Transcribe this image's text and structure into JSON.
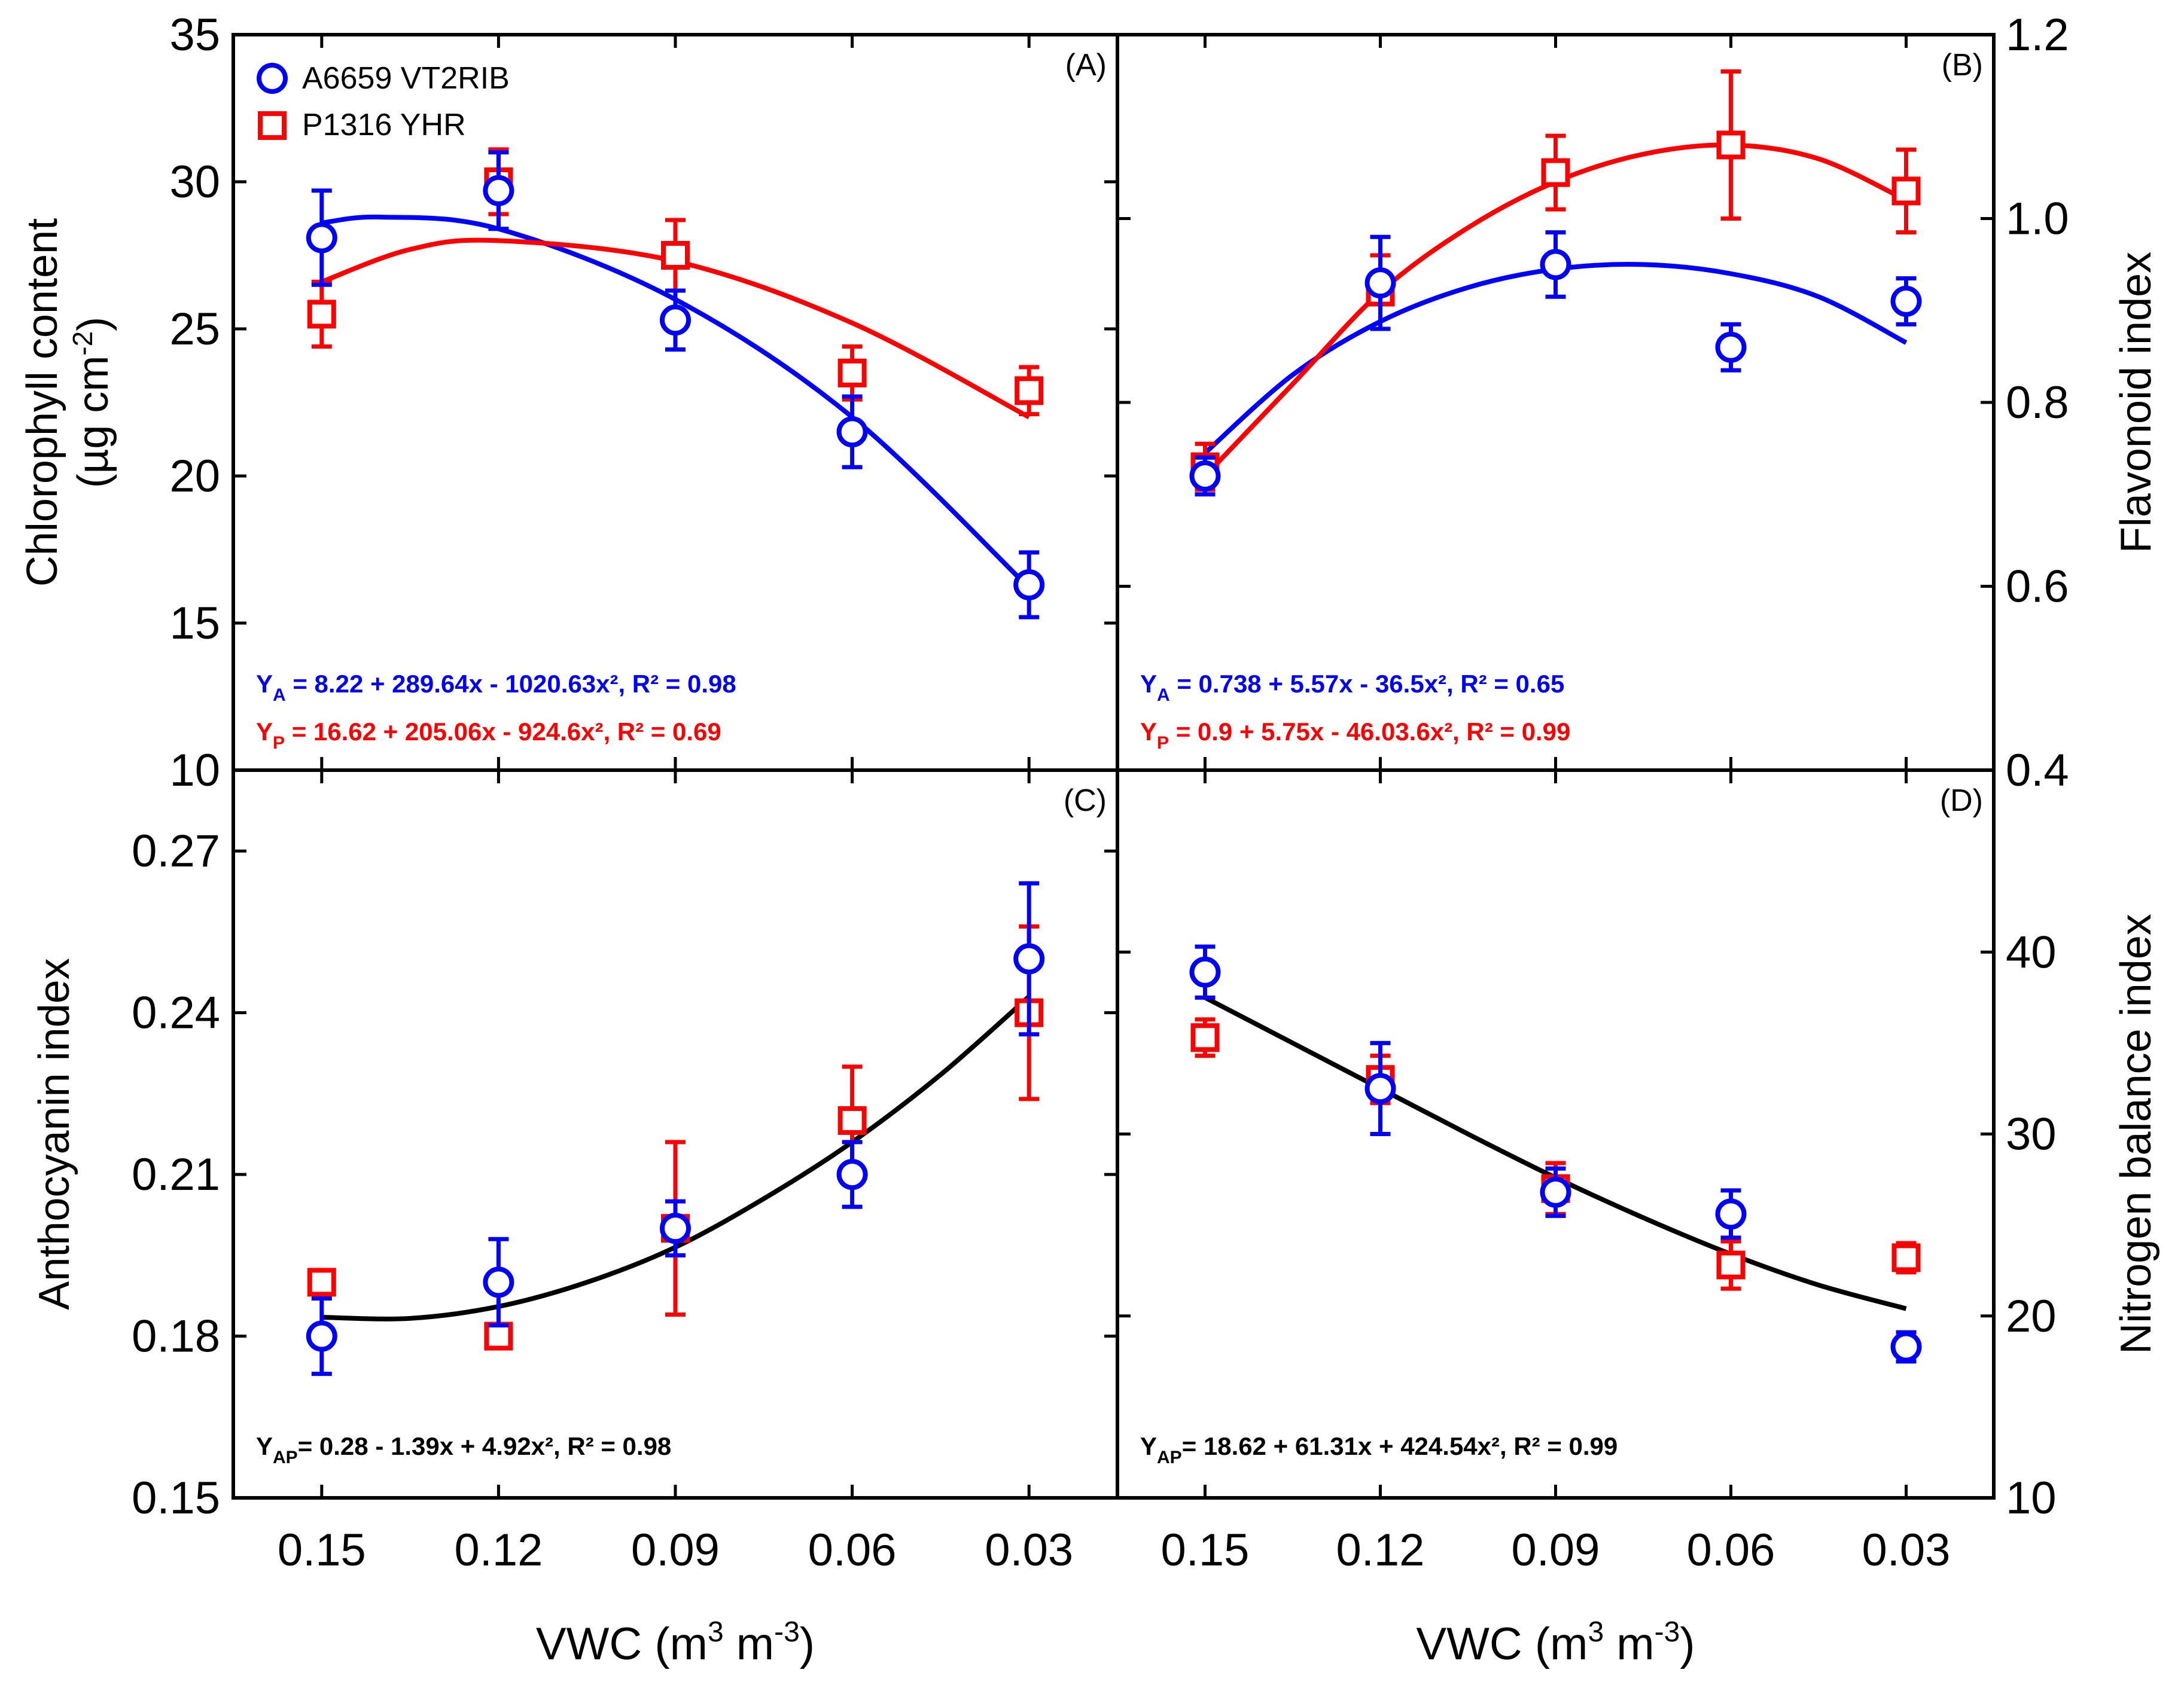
{
  "colors": {
    "series_a": "#0000ff",
    "series_p": "#ff0000",
    "fit_common": "#000000",
    "axis": "#000000"
  },
  "legend": {
    "series_a": "A6659 VT2RIB",
    "series_p": "P1316 YHR"
  },
  "x_axis": {
    "label": "VWC (m",
    "label_mid": " m",
    "label_sup": "3",
    "tick_labels": [
      "0.15",
      "0.12",
      "0.09",
      "0.06",
      "0.03"
    ]
  },
  "chart_data": [
    {
      "id": "A",
      "type": "scatter",
      "panel_label": "(A)",
      "ylabel_line1": "Chlorophyll content",
      "ylabel_line2": "(µg cm",
      "ylabel_sup": "-2",
      "ylabel_close": ")",
      "y_axis_side": "left",
      "ylim": [
        10,
        35
      ],
      "yticks": [
        10,
        15,
        20,
        25,
        30,
        35
      ],
      "ytick_labels": [
        "10",
        "15",
        "20",
        "25",
        "30",
        "35"
      ],
      "x": [
        0.15,
        0.12,
        0.09,
        0.06,
        0.03
      ],
      "series": [
        {
          "name": "A6659 VT2RIB",
          "color_key": "series_a",
          "marker": "circle",
          "values": [
            28.1,
            29.7,
            25.3,
            21.5,
            16.3
          ],
          "errors": [
            1.6,
            1.3,
            1.0,
            1.2,
            1.1
          ]
        },
        {
          "name": "P1316 YHR",
          "color_key": "series_p",
          "marker": "square",
          "values": [
            25.5,
            30.0,
            27.5,
            23.5,
            22.9
          ],
          "errors": [
            1.1,
            1.1,
            1.2,
            0.9,
            0.8
          ]
        }
      ],
      "fits": [
        {
          "color_key": "series_a",
          "points": [
            [
              0.15,
              28.6
            ],
            [
              0.14,
              28.8
            ],
            [
              0.12,
              28.4
            ],
            [
              0.09,
              26.0
            ],
            [
              0.06,
              22.0
            ],
            [
              0.03,
              16.2
            ]
          ]
        },
        {
          "color_key": "series_p",
          "points": [
            [
              0.15,
              26.6
            ],
            [
              0.135,
              27.7
            ],
            [
              0.12,
              28.0
            ],
            [
              0.09,
              27.3
            ],
            [
              0.06,
              25.2
            ],
            [
              0.03,
              22.0
            ]
          ]
        }
      ],
      "equations": [
        {
          "color_key": "series_a",
          "y": "Y",
          "sub": "A",
          "text": " =  8.22 + 289.64x - 1020.63x², R² = 0.98"
        },
        {
          "color_key": "series_p",
          "y": "Y",
          "sub": "P",
          "text": " = 16.62 + 205.06x - 924.6x², R² = 0.69"
        }
      ]
    },
    {
      "id": "B",
      "type": "scatter",
      "panel_label": "(B)",
      "ylabel_line1": "Flavonoid index",
      "y_axis_side": "right",
      "ylim": [
        0.4,
        1.2
      ],
      "yticks": [
        0.4,
        0.6,
        0.8,
        1.0,
        1.2
      ],
      "ytick_labels": [
        "0.4",
        "0.6",
        "0.8",
        "1.0",
        "1.2"
      ],
      "x": [
        0.15,
        0.12,
        0.09,
        0.06,
        0.03
      ],
      "series": [
        {
          "name": "A6659 VT2RIB",
          "color_key": "series_a",
          "marker": "circle",
          "values": [
            0.72,
            0.93,
            0.95,
            0.86,
            0.91
          ],
          "errors": [
            0.02,
            0.05,
            0.035,
            0.025,
            0.025
          ]
        },
        {
          "name": "P1316 YHR",
          "color_key": "series_p",
          "marker": "square",
          "values": [
            0.73,
            0.92,
            1.05,
            1.08,
            1.03
          ],
          "errors": [
            0.025,
            0.04,
            0.04,
            0.08,
            0.045
          ]
        }
      ],
      "fits": [
        {
          "color_key": "series_a",
          "points": [
            [
              0.15,
              0.745
            ],
            [
              0.135,
              0.83
            ],
            [
              0.12,
              0.888
            ],
            [
              0.105,
              0.925
            ],
            [
              0.09,
              0.945
            ],
            [
              0.075,
              0.95
            ],
            [
              0.06,
              0.94
            ],
            [
              0.045,
              0.915
            ],
            [
              0.03,
              0.865
            ]
          ]
        },
        {
          "color_key": "series_p",
          "points": [
            [
              0.15,
              0.72
            ],
            [
              0.135,
              0.82
            ],
            [
              0.12,
              0.92
            ],
            [
              0.105,
              0.99
            ],
            [
              0.09,
              1.04
            ],
            [
              0.075,
              1.07
            ],
            [
              0.06,
              1.08
            ],
            [
              0.045,
              1.065
            ],
            [
              0.03,
              1.02
            ]
          ]
        }
      ],
      "equations": [
        {
          "color_key": "series_a",
          "y": "Y",
          "sub": "A",
          "text": " = 0.738 + 5.57x - 36.5x², R² = 0.65"
        },
        {
          "color_key": "series_p",
          "y": "Y",
          "sub": "P",
          "text": " = 0.9 + 5.75x - 46.03.6x², R² = 0.99"
        }
      ]
    },
    {
      "id": "C",
      "type": "scatter",
      "panel_label": "(C)",
      "ylabel_line1": "Anthocyanin index",
      "y_axis_side": "left",
      "ylim": [
        0.15,
        0.285
      ],
      "yticks": [
        0.15,
        0.18,
        0.21,
        0.24,
        0.27
      ],
      "ytick_labels": [
        "0.15",
        "0.18",
        "0.21",
        "0.24",
        "0.27"
      ],
      "x": [
        0.15,
        0.12,
        0.09,
        0.06,
        0.03
      ],
      "series": [
        {
          "name": "A6659 VT2RIB",
          "color_key": "series_a",
          "marker": "circle",
          "values": [
            0.18,
            0.19,
            0.2,
            0.21,
            0.25
          ],
          "errors": [
            0.007,
            0.008,
            0.005,
            0.006,
            0.014
          ]
        },
        {
          "name": "P1316 YHR",
          "color_key": "series_p",
          "marker": "square",
          "values": [
            0.19,
            0.18,
            0.2,
            0.22,
            0.24
          ],
          "errors": [
            0.002,
            0.002,
            0.016,
            0.01,
            0.016
          ]
        }
      ],
      "fits": [
        {
          "color_key": "fit_common",
          "points": [
            [
              0.15,
              0.1835
            ],
            [
              0.135,
              0.1833
            ],
            [
              0.12,
              0.1855
            ],
            [
              0.105,
              0.19
            ],
            [
              0.09,
              0.1965
            ],
            [
              0.075,
              0.2055
            ],
            [
              0.06,
              0.216
            ],
            [
              0.045,
              0.2285
            ],
            [
              0.03,
              0.243
            ]
          ]
        }
      ],
      "equations": [
        {
          "color_key": "fit_common",
          "y": "Y",
          "sub": "AP",
          "text": "= 0.28 - 1.39x + 4.92x², R² = 0.98"
        }
      ]
    },
    {
      "id": "D",
      "type": "scatter",
      "panel_label": "(D)",
      "ylabel_line1": "Nitrogen balance index",
      "y_axis_side": "right",
      "ylim": [
        10,
        50
      ],
      "yticks": [
        10,
        20,
        30,
        40
      ],
      "ytick_labels": [
        "10",
        "20",
        "30",
        "40"
      ],
      "x": [
        0.15,
        0.12,
        0.09,
        0.06,
        0.03
      ],
      "series": [
        {
          "name": "A6659 VT2RIB",
          "color_key": "series_a",
          "marker": "circle",
          "values": [
            38.9,
            32.5,
            26.8,
            25.6,
            18.3
          ],
          "errors": [
            1.4,
            2.5,
            1.3,
            1.3,
            0.8
          ]
        },
        {
          "name": "P1316 YHR",
          "color_key": "series_p",
          "marker": "square",
          "values": [
            35.3,
            33.0,
            27.0,
            22.8,
            23.2
          ],
          "errors": [
            1.0,
            1.3,
            1.4,
            1.3,
            0.8
          ]
        }
      ],
      "fits": [
        {
          "color_key": "fit_common",
          "points": [
            [
              0.15,
              37.5
            ],
            [
              0.135,
              35.0
            ],
            [
              0.12,
              32.5
            ],
            [
              0.105,
              30.0
            ],
            [
              0.09,
              27.6
            ],
            [
              0.075,
              25.4
            ],
            [
              0.06,
              23.4
            ],
            [
              0.045,
              21.7
            ],
            [
              0.03,
              20.4
            ]
          ]
        }
      ],
      "equations": [
        {
          "color_key": "fit_common",
          "y": "Y",
          "sub": "AP",
          "text": "= 18.62 + 61.31x + 424.54x², R² = 0.99"
        }
      ]
    }
  ]
}
